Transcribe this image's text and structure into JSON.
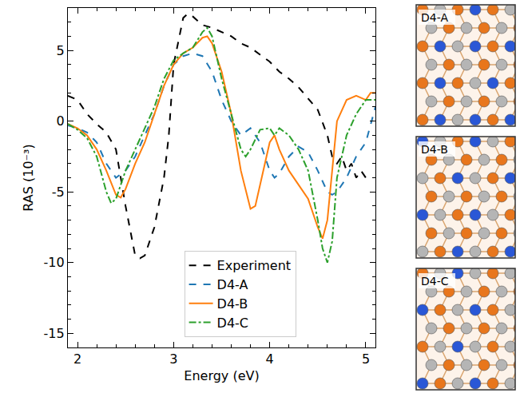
{
  "chart_data": {
    "type": "line",
    "x_label": "Energy (eV)",
    "y_label": "RAS (10⁻³)",
    "xlim": [
      1.9,
      5.1
    ],
    "xticks": [
      2,
      3,
      4,
      5
    ],
    "ylim": [
      -16,
      8
    ],
    "yticks": [
      -15,
      -10,
      -5,
      0,
      5
    ],
    "grid": false,
    "legend": "lower center",
    "series": [
      {
        "name": "Experiment",
        "color": "#000000",
        "line_style": "dash",
        "x": [
          1.9,
          2.0,
          2.1,
          2.2,
          2.3,
          2.4,
          2.5,
          2.6,
          2.65,
          2.7,
          2.8,
          2.9,
          2.95,
          3.0,
          3.1,
          3.15,
          3.2,
          3.3,
          3.4,
          3.5,
          3.6,
          3.7,
          3.8,
          3.9,
          4.0,
          4.1,
          4.2,
          4.3,
          4.4,
          4.5,
          4.6,
          4.65,
          4.7,
          4.75,
          4.8,
          4.85,
          4.9,
          4.95,
          5.0
        ],
        "values": [
          1.8,
          1.5,
          0.5,
          -0.2,
          -0.8,
          -2,
          -6,
          -9.5,
          -9.7,
          -9.5,
          -7.5,
          -4,
          -1,
          4,
          7.3,
          7.6,
          7.4,
          6.8,
          6.6,
          6.3,
          6.0,
          5.5,
          5.2,
          4.7,
          4.2,
          3.5,
          3.0,
          2.4,
          1.6,
          0.8,
          -1,
          -2.5,
          -3,
          -2.5,
          -3.5,
          -3,
          -4,
          -3.5,
          -4
        ]
      },
      {
        "name": "D4-A",
        "color": "#1f77b4",
        "line_style": "dash",
        "x": [
          1.9,
          2.0,
          2.1,
          2.2,
          2.3,
          2.4,
          2.5,
          2.6,
          2.7,
          2.8,
          2.9,
          3.0,
          3.1,
          3.2,
          3.3,
          3.4,
          3.5,
          3.6,
          3.7,
          3.8,
          3.9,
          4.0,
          4.05,
          4.1,
          4.2,
          4.3,
          4.4,
          4.5,
          4.6,
          4.65,
          4.7,
          4.8,
          4.9,
          5.0,
          5.1
        ],
        "values": [
          -0.3,
          -0.5,
          -0.8,
          -1.5,
          -3,
          -4,
          -3.5,
          -2.5,
          -1,
          0.5,
          2.5,
          4,
          4.6,
          4.8,
          4.6,
          3.5,
          1.5,
          0,
          -1,
          -0.5,
          -1.5,
          -3.5,
          -4,
          -3.7,
          -2.5,
          -1.8,
          -2.2,
          -3.5,
          -5,
          -5.2,
          -5,
          -4,
          -2.5,
          -1.5,
          1
        ]
      },
      {
        "name": "D4-B",
        "color": "#ff7f0e",
        "line_style": "solid",
        "x": [
          1.9,
          2.0,
          2.1,
          2.2,
          2.3,
          2.4,
          2.45,
          2.5,
          2.6,
          2.7,
          2.8,
          2.9,
          3.0,
          3.1,
          3.2,
          3.3,
          3.35,
          3.4,
          3.5,
          3.6,
          3.7,
          3.8,
          3.85,
          3.9,
          4.0,
          4.05,
          4.1,
          4.2,
          4.3,
          4.4,
          4.5,
          4.55,
          4.6,
          4.65,
          4.7,
          4.8,
          4.9,
          5.0,
          5.05,
          5.1
        ],
        "values": [
          -0.2,
          -0.5,
          -1,
          -2,
          -3.5,
          -5.2,
          -5.4,
          -4.8,
          -3,
          -1.5,
          0.5,
          2.5,
          4,
          4.8,
          5.2,
          5.9,
          6,
          5.5,
          3.5,
          0.5,
          -3.5,
          -6.2,
          -6,
          -4.5,
          -1.5,
          -1,
          -2,
          -3.5,
          -4.5,
          -5.5,
          -7.5,
          -8.3,
          -7,
          -3.5,
          0,
          1.5,
          1.8,
          1.5,
          2,
          2
        ]
      },
      {
        "name": "D4-C",
        "color": "#2ca02c",
        "line_style": "dashdot",
        "x": [
          1.9,
          2.0,
          2.1,
          2.2,
          2.3,
          2.35,
          2.4,
          2.5,
          2.6,
          2.7,
          2.8,
          2.9,
          3.0,
          3.1,
          3.2,
          3.3,
          3.35,
          3.4,
          3.5,
          3.6,
          3.7,
          3.75,
          3.8,
          3.9,
          4.0,
          4.05,
          4.1,
          4.2,
          4.3,
          4.4,
          4.5,
          4.55,
          4.6,
          4.65,
          4.7,
          4.8,
          4.9,
          5.0,
          5.1
        ],
        "values": [
          -0.2,
          -0.6,
          -1.2,
          -2.5,
          -5,
          -5.8,
          -5.5,
          -3.5,
          -2,
          -0.5,
          1,
          3,
          4.3,
          4.8,
          5.2,
          6.3,
          6.6,
          6,
          3,
          0.5,
          -2,
          -2.5,
          -2,
          -0.6,
          -0.5,
          -1,
          -0.5,
          -1,
          -2,
          -3.5,
          -7,
          -9,
          -10,
          -8.5,
          -4,
          -1,
          0.5,
          1.5,
          1.5
        ]
      }
    ]
  },
  "structures": [
    "D4-A",
    "D4-B",
    "D4-C"
  ]
}
